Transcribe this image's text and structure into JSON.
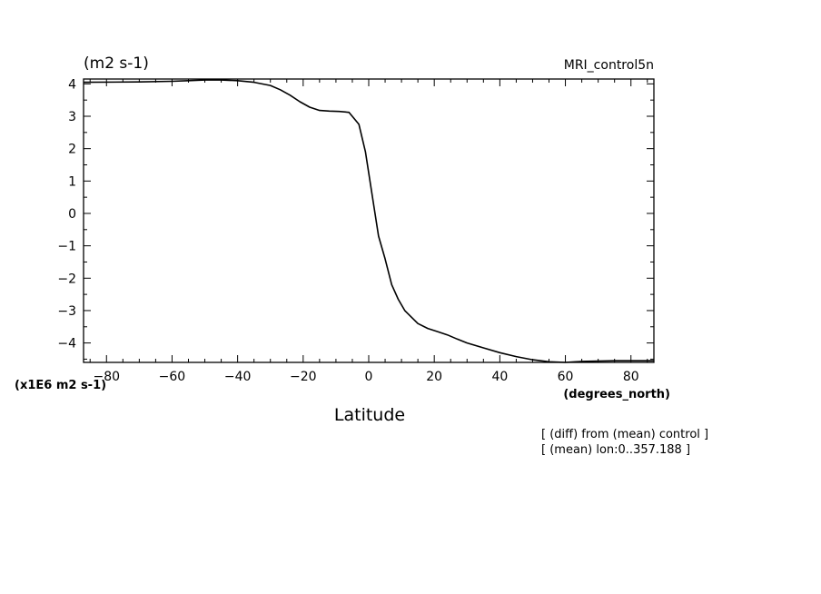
{
  "chart_data": {
    "type": "line",
    "title": "MRI_control5n",
    "units_label": "(m2 s-1)",
    "scale_label": "(x1E6 m2 s-1)",
    "xlabel": "Latitude",
    "x_units": "(degrees_north)",
    "annotations": [
      "[ (diff) from (mean) control ]",
      "[ (mean) lon:0..357.188 ]"
    ],
    "xlim": [
      -87,
      87
    ],
    "ylim": [
      -4.6,
      4.15
    ],
    "x_ticks": [
      -80,
      -60,
      -40,
      -20,
      0,
      20,
      40,
      60,
      80
    ],
    "x_tick_labels": [
      "−80",
      "−60",
      "−40",
      "−20",
      "0",
      "20",
      "40",
      "60",
      "80"
    ],
    "y_ticks": [
      4,
      3,
      2,
      1,
      0,
      -1,
      -2,
      -3,
      -4
    ],
    "y_tick_labels": [
      "4",
      "3",
      "2",
      "1",
      "0",
      "−1",
      "−2",
      "−3",
      "−4"
    ],
    "grid": false,
    "series": [
      {
        "x": [
          -87,
          -70,
          -60,
          -55,
          -50,
          -45,
          -40,
          -35,
          -30,
          -27,
          -24,
          -21,
          -18,
          -15,
          -12,
          -9,
          -6,
          -3,
          -1,
          1,
          3,
          5,
          7,
          9,
          11,
          13,
          15,
          18,
          21,
          24,
          27,
          30,
          35,
          40,
          45,
          50,
          55,
          60,
          65,
          70,
          75,
          80,
          87
        ],
        "y": [
          4.05,
          4.06,
          4.08,
          4.1,
          4.12,
          4.12,
          4.1,
          4.05,
          3.95,
          3.82,
          3.65,
          3.45,
          3.28,
          3.18,
          3.16,
          3.15,
          3.12,
          2.75,
          1.9,
          0.6,
          -0.7,
          -1.4,
          -2.2,
          -2.65,
          -3.0,
          -3.2,
          -3.4,
          -3.55,
          -3.65,
          -3.75,
          -3.88,
          -4.0,
          -4.15,
          -4.3,
          -4.42,
          -4.52,
          -4.58,
          -4.6,
          -4.57,
          -4.56,
          -4.55,
          -4.55,
          -4.55
        ]
      }
    ]
  }
}
